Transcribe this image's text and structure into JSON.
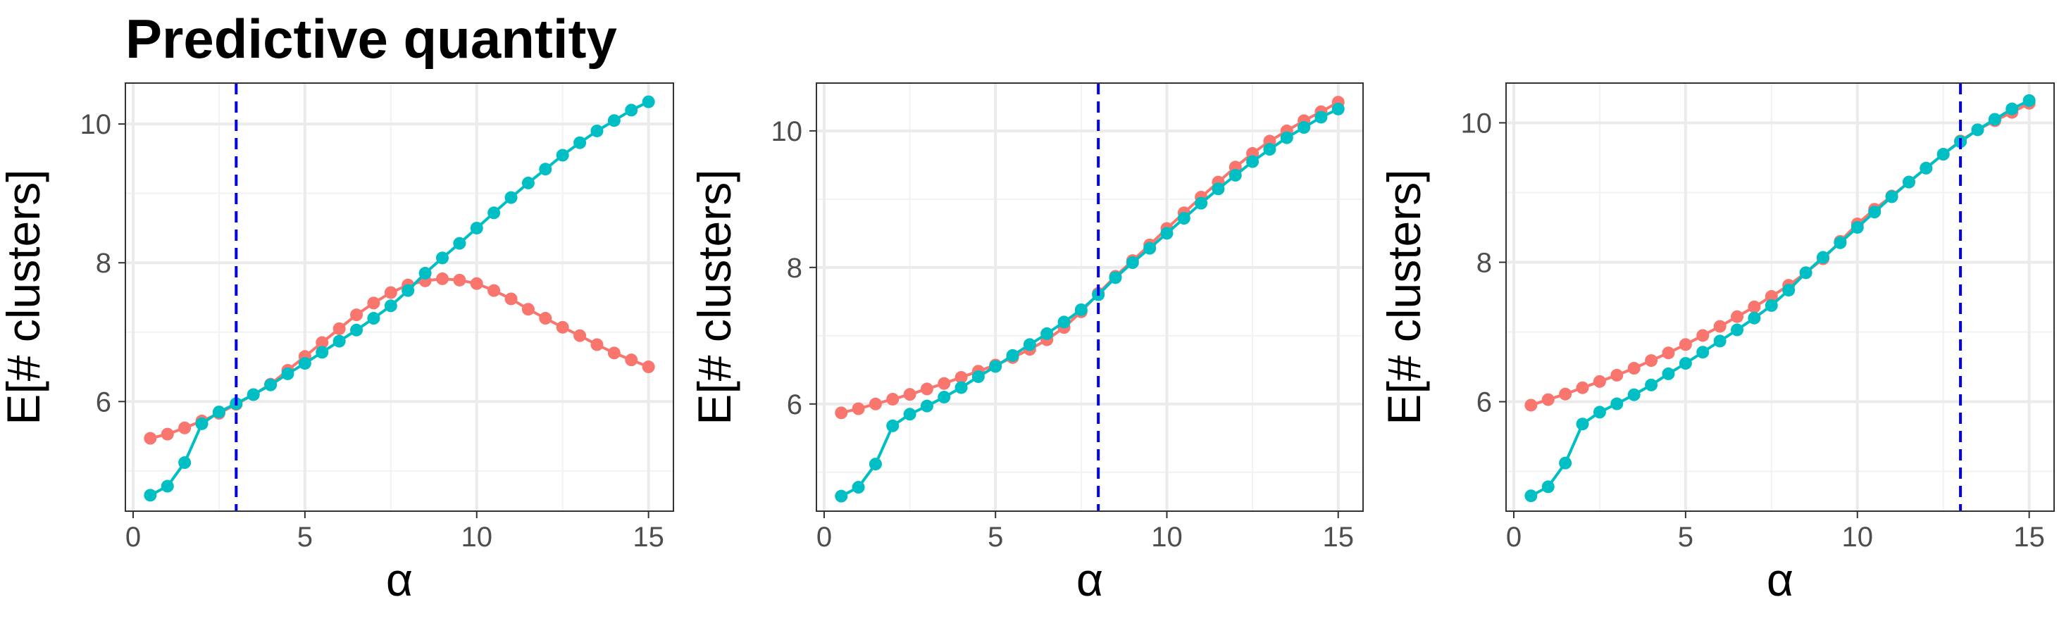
{
  "chart_data": [
    {
      "type": "line",
      "title": "Predictive quantity",
      "x_label": "α",
      "y_label": "E[# clusters]",
      "x": [
        0.5,
        1,
        1.5,
        2,
        2.5,
        3,
        3.5,
        4,
        4.5,
        5,
        5.5,
        6,
        6.5,
        7,
        7.5,
        8,
        8.5,
        9,
        9.5,
        10,
        10.5,
        11,
        11.5,
        12,
        12.5,
        13,
        13.5,
        14,
        14.5,
        15
      ],
      "series": [
        {
          "color": "#F8766D",
          "values": [
            5.47,
            5.53,
            5.62,
            5.72,
            5.83,
            5.96,
            6.1,
            6.25,
            6.45,
            6.65,
            6.85,
            7.05,
            7.25,
            7.42,
            7.57,
            7.68,
            7.74,
            7.77,
            7.75,
            7.7,
            7.6,
            7.48,
            7.33,
            7.2,
            7.07,
            6.95,
            6.82,
            6.7,
            6.6,
            6.5
          ]
        },
        {
          "color": "#00BFC4",
          "values": [
            4.65,
            4.78,
            5.12,
            5.68,
            5.85,
            5.97,
            6.1,
            6.24,
            6.4,
            6.55,
            6.71,
            6.87,
            7.03,
            7.2,
            7.38,
            7.6,
            7.85,
            8.07,
            8.28,
            8.5,
            8.72,
            8.94,
            9.15,
            9.35,
            9.55,
            9.73,
            9.9,
            10.05,
            10.2,
            10.32
          ]
        }
      ],
      "vline": 3,
      "vline_color": "#0000EE",
      "xlim": [
        -0.225,
        15.725
      ],
      "xticks": [
        0,
        5,
        10,
        15
      ],
      "minor_xticks": [
        2.5,
        7.5,
        12.5
      ],
      "ylim": [
        4.42,
        10.59
      ],
      "yticks": [
        6,
        8,
        10
      ],
      "minor_yticks": [
        5,
        7,
        9
      ],
      "grid": true
    },
    {
      "type": "line",
      "x_label": "α",
      "y_label": "E[# clusters]",
      "x": [
        0.5,
        1,
        1.5,
        2,
        2.5,
        3,
        3.5,
        4,
        4.5,
        5,
        5.5,
        6,
        6.5,
        7,
        7.5,
        8,
        8.5,
        9,
        9.5,
        10,
        10.5,
        11,
        11.5,
        12,
        12.5,
        13,
        13.5,
        14,
        14.5,
        15
      ],
      "series": [
        {
          "color": "#F8766D",
          "values": [
            5.87,
            5.93,
            6.0,
            6.07,
            6.14,
            6.22,
            6.3,
            6.39,
            6.48,
            6.57,
            6.68,
            6.8,
            6.94,
            7.12,
            7.35,
            7.62,
            7.87,
            8.1,
            8.33,
            8.57,
            8.8,
            9.03,
            9.25,
            9.47,
            9.67,
            9.85,
            10.0,
            10.15,
            10.28,
            10.42
          ]
        },
        {
          "color": "#00BFC4",
          "values": [
            4.65,
            4.78,
            5.12,
            5.68,
            5.85,
            5.97,
            6.1,
            6.24,
            6.4,
            6.55,
            6.71,
            6.87,
            7.03,
            7.2,
            7.38,
            7.6,
            7.85,
            8.07,
            8.28,
            8.5,
            8.72,
            8.94,
            9.15,
            9.35,
            9.55,
            9.73,
            9.9,
            10.05,
            10.2,
            10.32
          ]
        }
      ],
      "vline": 8,
      "vline_color": "#0000EE",
      "xlim": [
        -0.225,
        15.725
      ],
      "xticks": [
        0,
        5,
        10,
        15
      ],
      "minor_xticks": [
        2.5,
        7.5,
        12.5
      ],
      "ylim": [
        4.43,
        10.7
      ],
      "yticks": [
        6,
        8,
        10
      ],
      "minor_yticks": [
        5,
        7,
        9
      ],
      "grid": true
    },
    {
      "type": "line",
      "x_label": "α",
      "y_label": "E[# clusters]",
      "x": [
        0.5,
        1,
        1.5,
        2,
        2.5,
        3,
        3.5,
        4,
        4.5,
        5,
        5.5,
        6,
        6.5,
        7,
        7.5,
        8,
        8.5,
        9,
        9.5,
        10,
        10.5,
        11,
        11.5,
        12,
        12.5,
        13,
        13.5,
        14,
        14.5,
        15
      ],
      "series": [
        {
          "color": "#F8766D",
          "values": [
            5.95,
            6.03,
            6.11,
            6.2,
            6.29,
            6.38,
            6.48,
            6.59,
            6.7,
            6.82,
            6.95,
            7.08,
            7.22,
            7.36,
            7.51,
            7.67,
            7.85,
            8.05,
            8.3,
            8.55,
            8.76,
            8.95,
            9.15,
            9.35,
            9.55,
            9.74,
            9.9,
            10.03,
            10.15,
            10.28
          ]
        },
        {
          "color": "#00BFC4",
          "values": [
            4.65,
            4.78,
            5.12,
            5.68,
            5.85,
            5.97,
            6.1,
            6.24,
            6.4,
            6.55,
            6.71,
            6.87,
            7.03,
            7.2,
            7.38,
            7.6,
            7.85,
            8.07,
            8.28,
            8.5,
            8.72,
            8.94,
            9.15,
            9.35,
            9.55,
            9.73,
            9.9,
            10.05,
            10.2,
            10.32
          ]
        }
      ],
      "vline": 13,
      "vline_color": "#0000EE",
      "xlim": [
        -0.225,
        15.725
      ],
      "xticks": [
        0,
        5,
        10,
        15
      ],
      "minor_xticks": [
        2.5,
        7.5,
        12.5
      ],
      "ylim": [
        4.43,
        10.57
      ],
      "yticks": [
        6,
        8,
        10
      ],
      "minor_yticks": [
        5,
        7,
        9
      ],
      "grid": true
    }
  ]
}
